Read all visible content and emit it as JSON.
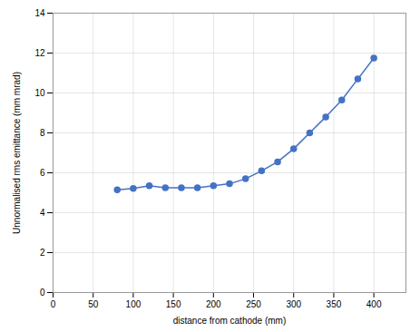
{
  "chart_data": {
    "type": "line",
    "x": [
      80,
      100,
      120,
      140,
      160,
      180,
      200,
      220,
      240,
      260,
      280,
      300,
      320,
      340,
      360,
      380,
      400
    ],
    "values": [
      5.15,
      5.22,
      5.35,
      5.25,
      5.25,
      5.25,
      5.35,
      5.45,
      5.7,
      6.1,
      6.55,
      7.2,
      8.0,
      8.8,
      9.65,
      10.7,
      11.75
    ],
    "color": "#4472C4",
    "marker": "circle",
    "xlabel": "distance from cathode (mm)",
    "ylabel": "Unnormalised rms emittance (mm mrad)",
    "xlim": [
      0,
      440
    ],
    "ylim": [
      0,
      14
    ],
    "xticks": [
      0,
      50,
      100,
      150,
      200,
      250,
      300,
      350,
      400
    ],
    "yticks": [
      0,
      2,
      4,
      6,
      8,
      10,
      12,
      14
    ],
    "grid": true
  }
}
